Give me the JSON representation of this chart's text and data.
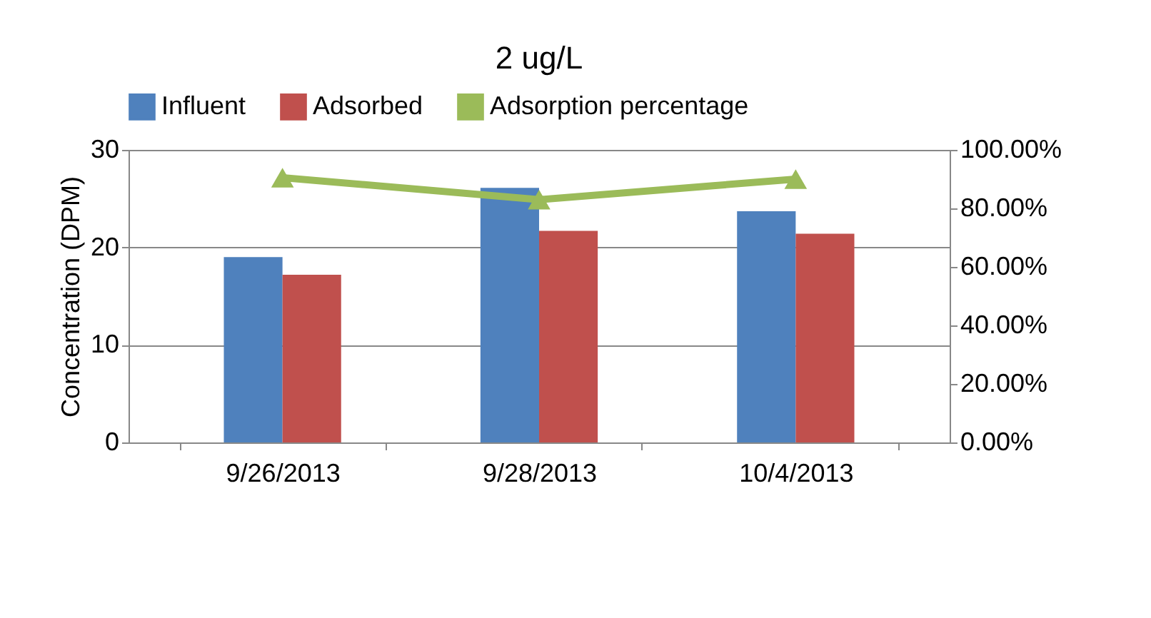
{
  "chart_data": {
    "type": "bar",
    "title": "2 ug/L",
    "ylabel": "Concentration (DPM)",
    "categories": [
      "9/26/2013",
      "9/28/2013",
      "10/4/2013"
    ],
    "series": [
      {
        "name": "Influent",
        "color": "#4f81bd",
        "values": [
          19.0,
          26.1,
          23.7
        ]
      },
      {
        "name": "Adsorbed",
        "color": "#c0504d",
        "values": [
          17.2,
          21.7,
          21.4
        ]
      },
      {
        "name": "Adsorption percentage",
        "color": "#9bbb59",
        "type": "line",
        "axis": "y2",
        "marker": "triangle",
        "values": [
          90.5,
          83.0,
          90.0
        ]
      }
    ],
    "ylim": [
      0,
      30
    ],
    "yticks": [
      0,
      10,
      20,
      30
    ],
    "y2lim": [
      0,
      100
    ],
    "y2ticks": [
      {
        "value": 0,
        "label": "0.00%"
      },
      {
        "value": 20,
        "label": "20.00%"
      },
      {
        "value": 40,
        "label": "40.00%"
      },
      {
        "value": 60,
        "label": "60.00%"
      },
      {
        "value": 80,
        "label": "80.00%"
      },
      {
        "value": 100,
        "label": "100.00%"
      }
    ],
    "grid": "y",
    "legend": "top"
  }
}
